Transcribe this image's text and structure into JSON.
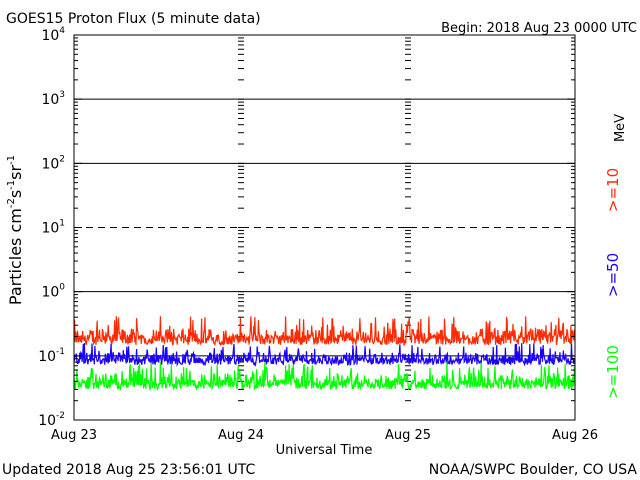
{
  "title": "GOES15 Proton Flux (5 minute data)",
  "begin_label": "Begin: 2018 Aug 23 0000 UTC",
  "updated_label": "Updated 2018 Aug 25 23:56:01 UTC",
  "source_label": "NOAA/SWPC Boulder, CO USA",
  "colors": {
    "ge10": "#ff2a00",
    "ge50": "#1a00ff",
    "ge100": "#00ff00",
    "axis": "#000000",
    "background": "#ffffff"
  },
  "chart_data": {
    "type": "line",
    "title": "GOES15 Proton Flux (5 minute data)",
    "xlabel": "Universal Time",
    "ylabel": "Particles cm-2s-1sr-1",
    "y_scale": "log",
    "ylim": [
      0.01,
      10000
    ],
    "xlim": [
      "2018-08-23",
      "2018-08-26"
    ],
    "x_ticks": [
      "Aug 23",
      "Aug 24",
      "Aug 25",
      "Aug 26"
    ],
    "y_ticks": [
      {
        "base": "10",
        "exp": "4"
      },
      {
        "base": "10",
        "exp": "3"
      },
      {
        "base": "10",
        "exp": "2"
      },
      {
        "base": "10",
        "exp": "1"
      },
      {
        "base": "10",
        "exp": "0"
      },
      {
        "base": "10",
        "exp": "-1"
      },
      {
        "base": "10",
        "exp": "-2"
      }
    ],
    "thresholds": [
      {
        "value": 10,
        "style": "dashed"
      },
      {
        "value": 0.1,
        "style": "solid"
      }
    ],
    "unit_label": "MeV",
    "series": [
      {
        "name": ">=10",
        "color": "#ff2a00",
        "base": 0.18,
        "min": 0.13,
        "max": 0.42
      },
      {
        "name": ">=50",
        "color": "#1a00ff",
        "base": 0.085,
        "min": 0.065,
        "max": 0.16
      },
      {
        "name": ">=100",
        "color": "#00ff00",
        "base": 0.04,
        "min": 0.025,
        "max": 0.08
      }
    ]
  }
}
